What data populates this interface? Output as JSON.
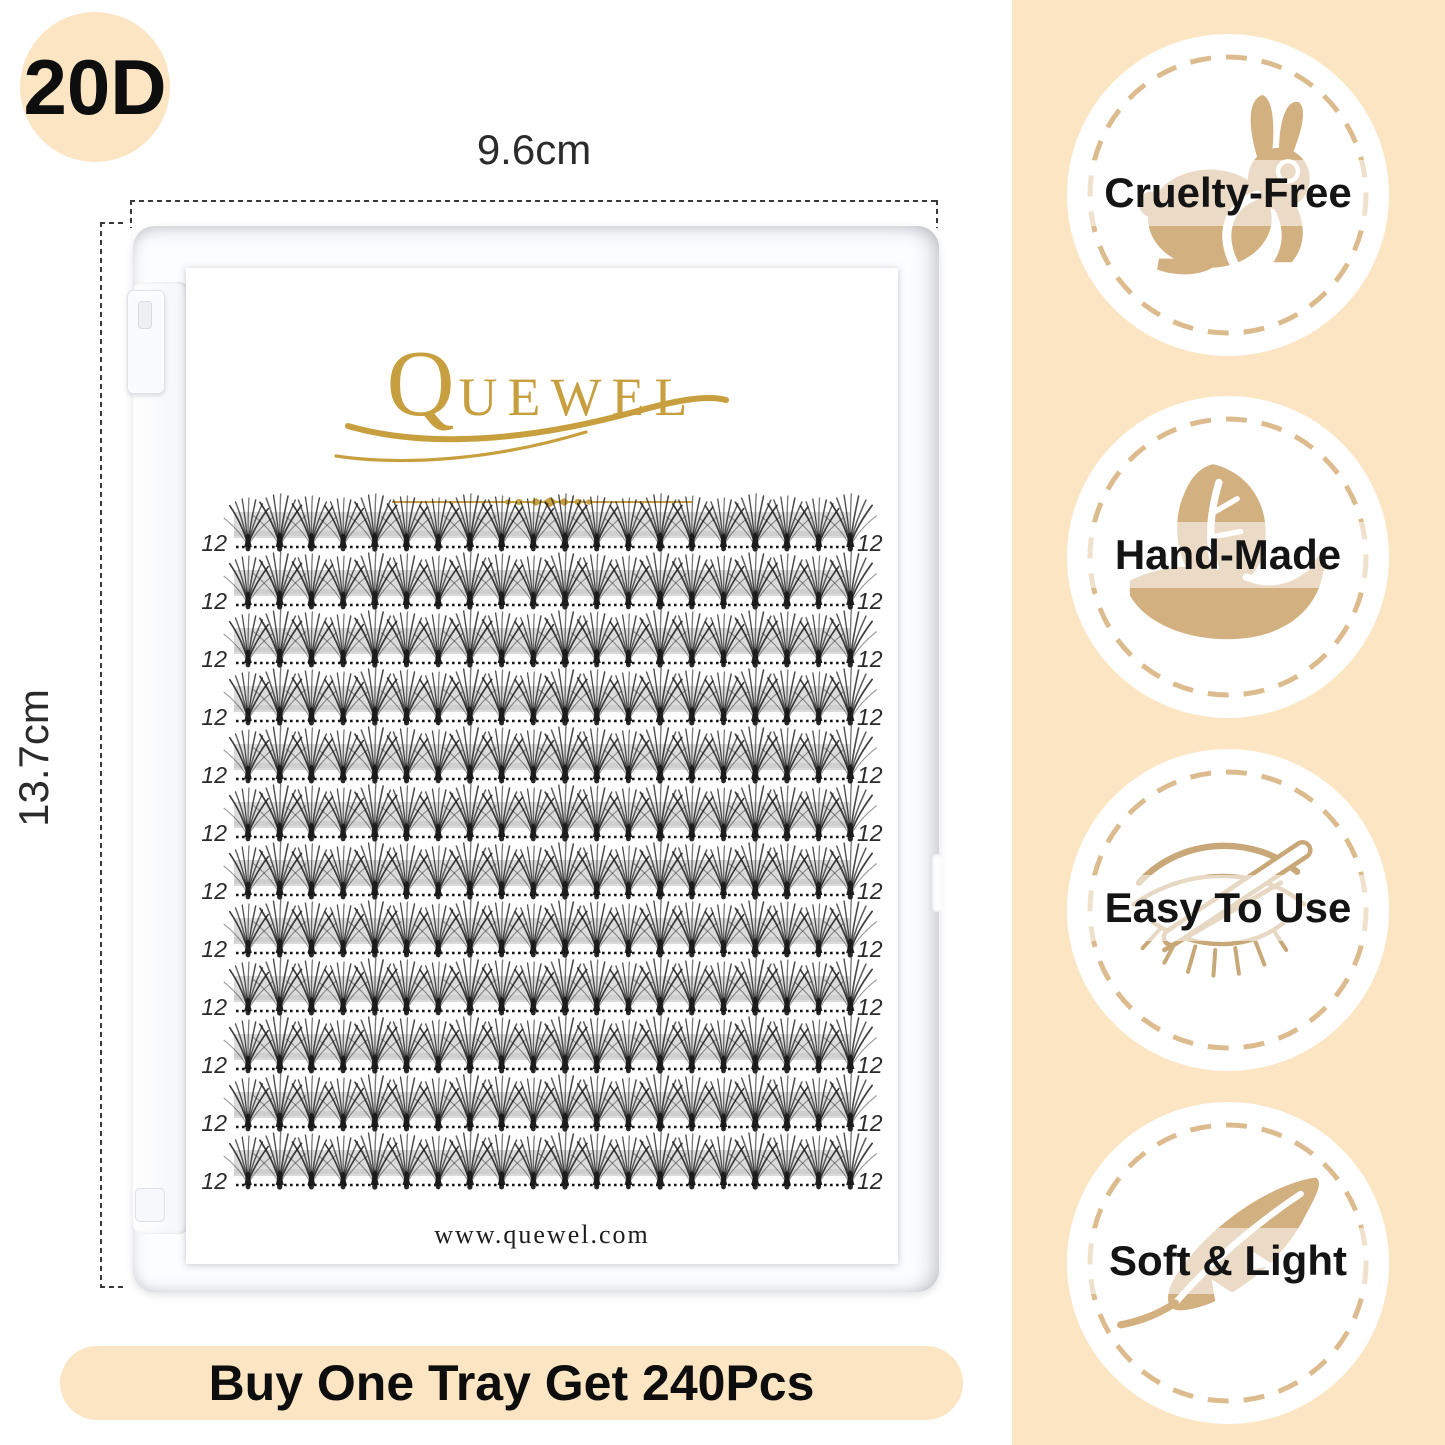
{
  "colors": {
    "peach": "#FBE5C3",
    "tan": "#D3B080",
    "tan_stroke": "#DCBC8E",
    "gold": "#C79F3F",
    "ink": "#111111"
  },
  "size_badge": {
    "label": "20D"
  },
  "dimensions": {
    "width_label": "9.6cm",
    "height_label": "13.7cm"
  },
  "tray": {
    "brand": "QUEWEL",
    "website": "www.quewel.com",
    "clusters_per_row": 20,
    "rows": [
      {
        "left": "12",
        "right": "12"
      },
      {
        "left": "12",
        "right": "12"
      },
      {
        "left": "12",
        "right": "12"
      },
      {
        "left": "12",
        "right": "12"
      },
      {
        "left": "12",
        "right": "12"
      },
      {
        "left": "12",
        "right": "12"
      },
      {
        "left": "12",
        "right": "12"
      },
      {
        "left": "12",
        "right": "12"
      },
      {
        "left": "12",
        "right": "12"
      },
      {
        "left": "12",
        "right": "12"
      },
      {
        "left": "12",
        "right": "12"
      },
      {
        "left": "12",
        "right": "12"
      }
    ]
  },
  "features": [
    {
      "label": "Cruelty-Free",
      "icon": "rabbit-icon"
    },
    {
      "label": "Hand-Made",
      "icon": "hand-leaf-icon"
    },
    {
      "label": "Easy To Use",
      "icon": "eye-tweezers-icon"
    },
    {
      "label": "Soft & Light",
      "icon": "feather-icon"
    }
  ],
  "banner": {
    "label": "Buy One Tray Get 240Pcs"
  }
}
